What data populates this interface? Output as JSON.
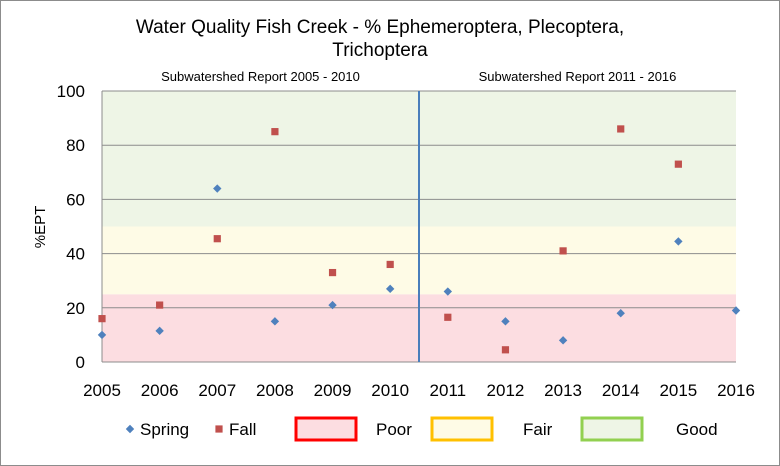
{
  "chart_data": {
    "type": "scatter",
    "title_lines": [
      "Water Quality Fish Creek - % Ephemeroptera, Plecoptera,",
      "Trichoptera"
    ],
    "ylabel": "%EPT",
    "xlabel": "",
    "ylim": [
      0,
      100
    ],
    "xlim": [
      2005,
      2016
    ],
    "y_ticks": [
      "0",
      "20",
      "40",
      "60",
      "80",
      "100"
    ],
    "x_ticks": [
      "2005",
      "2006",
      "2007",
      "2008",
      "2009",
      "2010",
      "2011",
      "2012",
      "2013",
      "2014",
      "2015",
      "2016"
    ],
    "grid": "horizontal",
    "periods": [
      {
        "label": "Subwatershed  Report 2005 - 2010"
      },
      {
        "label": "Subwatershed  Report 2011  - 2016"
      }
    ],
    "divider_x": 2010.5,
    "bands": [
      {
        "name": "Poor",
        "from": 0,
        "to": 25,
        "fill": "#fcdde1",
        "border": "#ff0000"
      },
      {
        "name": "Fair",
        "from": 25,
        "to": 50,
        "fill": "#fefbe6",
        "border": "#ffc000"
      },
      {
        "name": "Good",
        "from": 50,
        "to": 100,
        "fill": "#eef5e6",
        "border": "#92d050"
      }
    ],
    "series": [
      {
        "name": "Spring",
        "marker": "diamond",
        "color": "#4f81bd",
        "points": [
          [
            2005,
            10
          ],
          [
            2006,
            11.5
          ],
          [
            2007,
            64
          ],
          [
            2008,
            15
          ],
          [
            2009,
            21
          ],
          [
            2010,
            27
          ],
          [
            2011,
            26
          ],
          [
            2012,
            15
          ],
          [
            2013,
            8
          ],
          [
            2014,
            18
          ],
          [
            2015,
            44.5
          ],
          [
            2016,
            19
          ]
        ]
      },
      {
        "name": "Fall",
        "marker": "square",
        "color": "#c0504d",
        "points": [
          [
            2005,
            16
          ],
          [
            2006,
            21
          ],
          [
            2007,
            45.5
          ],
          [
            2008,
            85
          ],
          [
            2009,
            33
          ],
          [
            2010,
            36
          ],
          [
            2011,
            16.5
          ],
          [
            2012,
            4.5
          ],
          [
            2013,
            41
          ],
          [
            2014,
            86
          ],
          [
            2015,
            73
          ]
        ]
      }
    ],
    "legend": {
      "placement": "bottom",
      "items": [
        {
          "label": "Spring",
          "kind": "marker",
          "series": "Spring"
        },
        {
          "label": "Fall",
          "kind": "marker",
          "series": "Fall"
        },
        {
          "label": "Poor",
          "kind": "band",
          "band": "Poor"
        },
        {
          "label": "Fair",
          "kind": "band",
          "band": "Fair"
        },
        {
          "label": "Good",
          "kind": "band",
          "band": "Good"
        }
      ]
    }
  }
}
